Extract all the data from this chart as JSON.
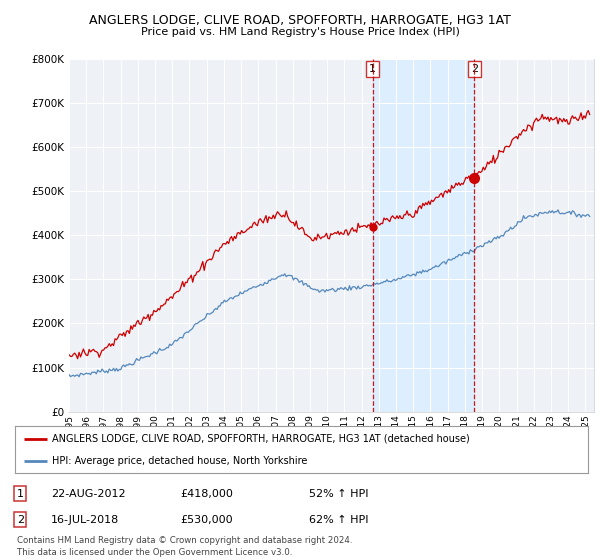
{
  "title": "ANGLERS LODGE, CLIVE ROAD, SPOFFORTH, HARROGATE, HG3 1AT",
  "subtitle": "Price paid vs. HM Land Registry's House Price Index (HPI)",
  "legend_line1": "ANGLERS LODGE, CLIVE ROAD, SPOFFORTH, HARROGATE, HG3 1AT (detached house)",
  "legend_line2": "HPI: Average price, detached house, North Yorkshire",
  "footer": "Contains HM Land Registry data © Crown copyright and database right 2024.\nThis data is licensed under the Open Government Licence v3.0.",
  "sale1_date": "22-AUG-2012",
  "sale1_price": "£418,000",
  "sale1_pct": "52% ↑ HPI",
  "sale1_year": 2012.64,
  "sale1_value": 418000,
  "sale2_date": "16-JUL-2018",
  "sale2_price": "£530,000",
  "sale2_pct": "62% ↑ HPI",
  "sale2_year": 2018.54,
  "sale2_value": 530000,
  "red_color": "#cc0000",
  "blue_color": "#5588bb",
  "shade_color": "#ddeeff",
  "background_color": "#eef2f7",
  "ylim": [
    0,
    800000
  ],
  "xlim_start": 1995.0,
  "xlim_end": 2025.5
}
